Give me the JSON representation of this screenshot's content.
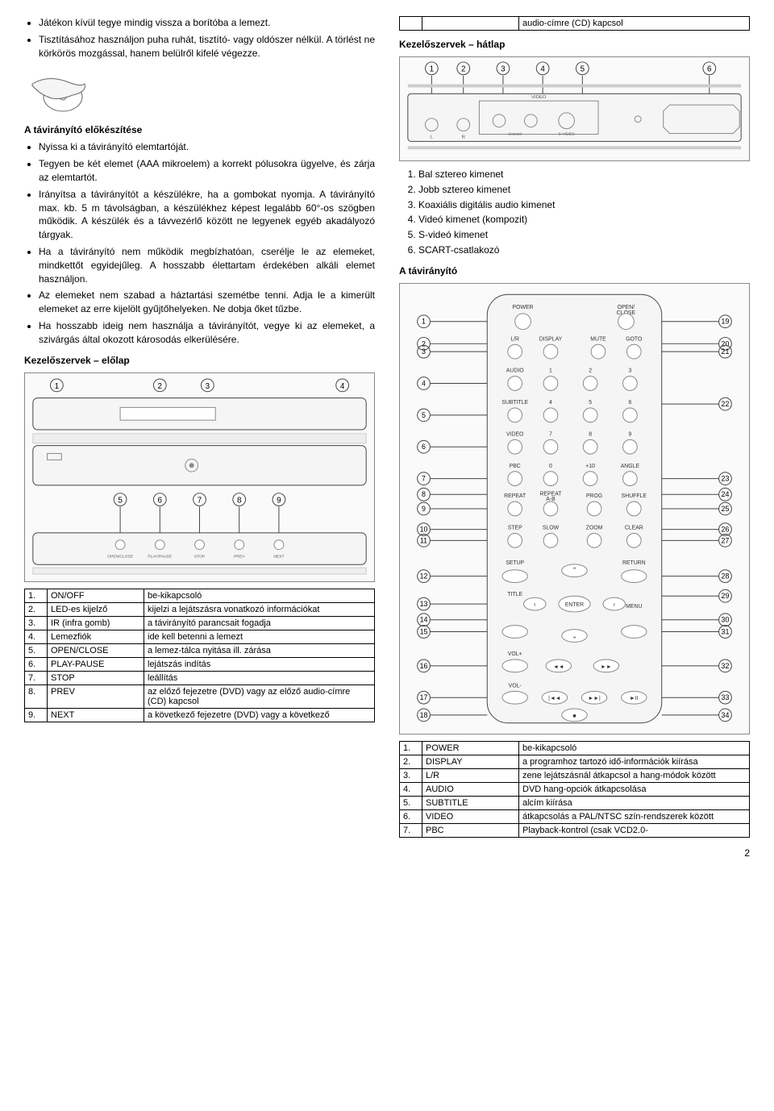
{
  "left": {
    "bullets_top": [
      "Játékon kívül tegye mindig vissza a borítóba a lemezt.",
      "Tisztításához használjon puha ruhát, tisztító- vagy oldószer nélkül. A törlést ne körkörös mozgással, hanem belülről kifelé végezze."
    ],
    "prep_title": "A távirányító előkészítése",
    "prep_bullets": [
      "Nyissa ki a távirányító elemtartóját.",
      "Tegyen be két elemet (AAA mikroelem) a korrekt pólusokra ügyelve, és zárja az elemtartót.",
      "Irányítsa a távirányítót a készülékre, ha a gombokat nyomja. A távirányító max. kb. 5 m távolságban, a készülékhez képest legalább 60°-os szögben működik. A készülék és a távvezérlő között ne legyenek egyéb akadályozó tárgyak.",
      "Ha a távirányító nem működik megbízhatóan, cserélje le az elemeket, mindkettőt egyidejűleg. A hosszabb élettartam érdekében alkáli elemet használjon.",
      "Az elemeket nem szabad a háztartási szemétbe tenni. Adja le a kimerült elemeket az erre kijelölt gyűjtőhelyeken. Ne dobja őket tűzbe.",
      "Ha hosszabb ideig nem használja a távirányítót, vegye ki az elemeket, a szivárgás által okozott károsodás elkerülésére."
    ],
    "front_title": "Kezelőszervek – előlap",
    "front_table": [
      {
        "n": "1.",
        "name": "ON/OFF",
        "desc": "be-kikapcsoló"
      },
      {
        "n": "2.",
        "name": "LED-es kijelző",
        "desc": "kijelzi a lejátszásra vonatkozó információkat"
      },
      {
        "n": "3.",
        "name": "IR (infra gomb)",
        "desc": "a távirányító parancsait fogadja"
      },
      {
        "n": "4.",
        "name": "Lemezfiók",
        "desc": "ide kell betenni a lemezt"
      },
      {
        "n": "5.",
        "name": "OPEN/CLOSE",
        "desc": "a lemez-tálca nyitása ill. zárása"
      },
      {
        "n": "6.",
        "name": "PLAY-PAUSE",
        "desc": "lejátszás indítás"
      },
      {
        "n": "7.",
        "name": "STOP",
        "desc": "leállítás"
      },
      {
        "n": "8.",
        "name": "PREV",
        "desc": "az előző fejezetre (DVD) vagy az előző audio-címre (CD) kapcsol"
      },
      {
        "n": "9.",
        "name": "NEXT",
        "desc": "a következő fejezetre (DVD) vagy a következő"
      }
    ]
  },
  "right": {
    "top_table_right": "audio-címre (CD) kapcsol",
    "rear_title": "Kezelőszervek – hátlap",
    "rear_list": [
      "Bal sztereo kimenet",
      "Jobb sztereo kimenet",
      "Koaxiális digitális audio kimenet",
      "Videó kimenet (kompozit)",
      "S-videó kimenet",
      "SCART-csatlakozó"
    ],
    "remote_title": "A távirányító",
    "remote_table": [
      {
        "n": "1.",
        "name": "POWER",
        "desc": "be-kikapcsoló"
      },
      {
        "n": "2.",
        "name": "DISPLAY",
        "desc": "a programhoz tartozó idő-információk kiírása"
      },
      {
        "n": "3.",
        "name": "L/R",
        "desc": "zene lejátszásnál átkapcsol a hang-módok között"
      },
      {
        "n": "4.",
        "name": "AUDIO",
        "desc": "DVD hang-opciók átkapcsolása"
      },
      {
        "n": "5.",
        "name": "SUBTITLE",
        "desc": "alcím kiírása"
      },
      {
        "n": "6.",
        "name": "VIDEO",
        "desc": "átkapcsolás a PAL/NTSC szín-rendszerek között"
      },
      {
        "n": "7.",
        "name": "PBC",
        "desc": "Playback-kontrol (csak VCD2.0-"
      }
    ],
    "remote_labels": {
      "power": "POWER",
      "openclose": "OPEN/\nCLOSE",
      "lr": "L/R",
      "display": "DISPLAY",
      "mute": "MUTE",
      "goto": "GOTO",
      "audio": "AUDIO",
      "subtitle": "SUBTITLE",
      "video": "VIDEO",
      "pbc": "PBC",
      "angle": "ANGLE",
      "repeat": "REPEAT",
      "repeatab": "REPEAT\nA-B",
      "prog": "PROG",
      "shuffle": "SHUFFLE",
      "step": "STEP",
      "slow": "SLOW",
      "zoom": "ZOOM",
      "clear": "CLEAR",
      "setup": "SETUP",
      "return": "RETURN",
      "title": "TITLE",
      "enter": "ENTER",
      "menu": "MENU",
      "volp": "VOL+",
      "volm": "VOL-"
    },
    "front_labels": [
      "OPEN/CLOSE",
      "PLAY/PAUSE",
      "STOP",
      "PREV",
      "NEXT"
    ]
  },
  "page_number": "2",
  "colors": {
    "text": "#000000",
    "border": "#000000",
    "diagram_stroke": "#666666",
    "diagram_fill": "#f5f5f5"
  }
}
